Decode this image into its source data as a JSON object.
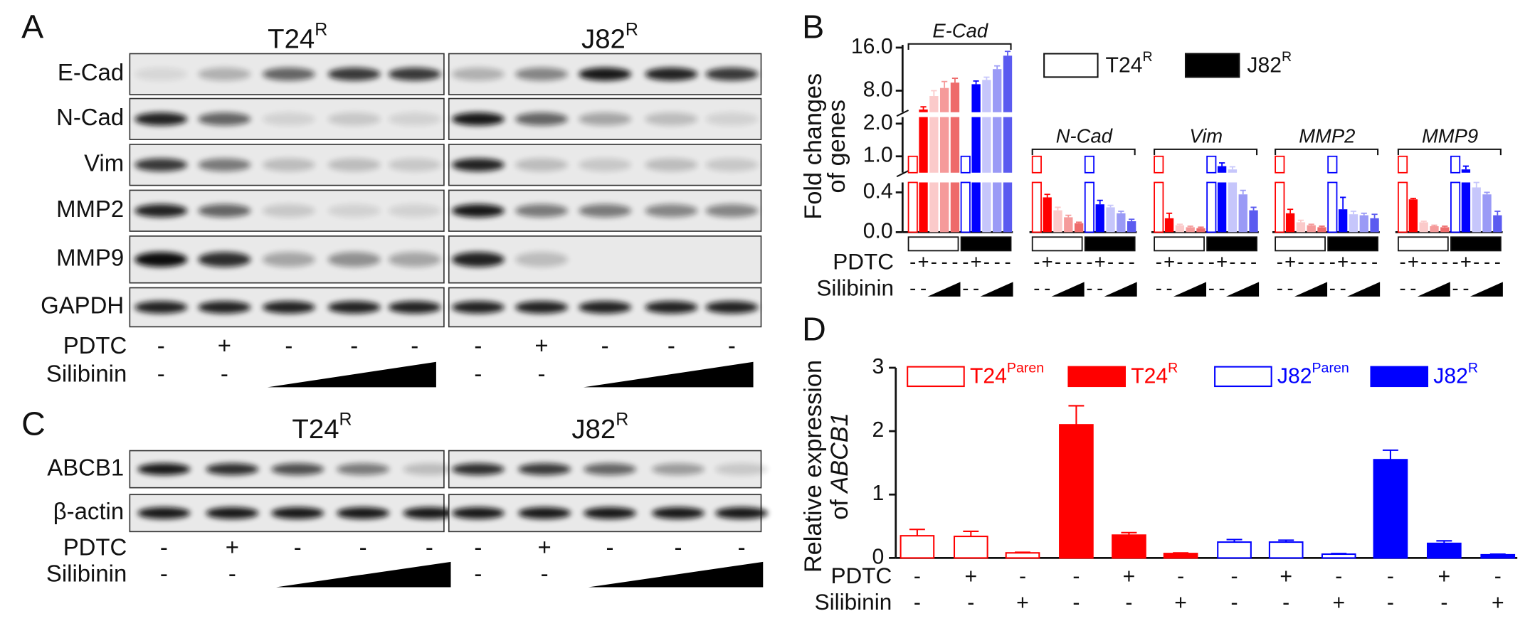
{
  "panels": {
    "A": {
      "label": "A",
      "cell_lines": [
        {
          "name": "T24",
          "sup": "R"
        },
        {
          "name": "J82",
          "sup": "R"
        }
      ],
      "rows": [
        "E-Cad",
        "N-Cad",
        "Vim",
        "MMP2",
        "MMP9",
        "GAPDH"
      ],
      "treatments": [
        {
          "name": "PDTC",
          "signs": [
            "-",
            "+",
            "-",
            "-",
            "-"
          ]
        },
        {
          "name": "Silibinin",
          "signs": [
            "-",
            "-"
          ]
        }
      ]
    },
    "C": {
      "label": "C",
      "cell_lines": [
        {
          "name": "T24",
          "sup": "R"
        },
        {
          "name": "J82",
          "sup": "R"
        }
      ],
      "rows": [
        "ABCB1",
        "β-actin"
      ],
      "treatments": [
        {
          "name": "PDTC",
          "signs": [
            "-",
            "+",
            "-",
            "-",
            "-"
          ]
        },
        {
          "name": "Silibinin",
          "signs": [
            "-",
            "-"
          ]
        }
      ]
    }
  },
  "chart_data": [
    {
      "type": "broken-bar",
      "label": "B",
      "ylabel": [
        "Fold changes",
        "of genes"
      ],
      "ysegments": [
        {
          "ylim": [
            0,
            0.5
          ],
          "yticks": [
            {
              "value": 0,
              "label": "0.0"
            },
            {
              "value": 0.4,
              "label": "0.4"
            }
          ]
        },
        {
          "ylim": [
            0.5,
            2.2
          ],
          "yticks": [
            {
              "value": 1,
              "label": "1.0"
            },
            {
              "value": 2,
              "label": "2.0"
            }
          ]
        },
        {
          "ylim": [
            4,
            16.5
          ],
          "yticks": [
            {
              "value": 8,
              "label": "8.0"
            },
            {
              "value": 16,
              "label": "16.0"
            }
          ]
        }
      ],
      "categories": [
        "E-Cad",
        "N-Cad",
        "Vim",
        "MMP2",
        "MMP9"
      ],
      "series": [
        {
          "name": "T24",
          "sup": "R",
          "legend_fill": "#ffffff",
          "border": "#ff0000",
          "colors": [
            "#ffffff",
            "#ff0000",
            "#fbcaca",
            "#f59a9a",
            "#ee6b6b"
          ],
          "values": [
            [
              1,
              4.5,
              7,
              8.5,
              9.5
            ],
            [
              1,
              0.35,
              0.22,
              0.15,
              0.09
            ],
            [
              1,
              0.14,
              0.07,
              0.05,
              0.04
            ],
            [
              1,
              0.19,
              0.1,
              0.07,
              0.05
            ],
            [
              1,
              0.33,
              0.1,
              0.06,
              0.05
            ]
          ],
          "errors": [
            [
              0,
              0.5,
              1,
              1.2,
              0.8
            ],
            [
              0,
              0.03,
              0.03,
              0.02,
              0.01
            ],
            [
              0,
              0.05,
              0.01,
              0.01,
              0.01
            ],
            [
              0,
              0.04,
              0.02,
              0.01,
              0.01
            ],
            [
              0,
              0.01,
              0.01,
              0.01,
              0.01
            ]
          ]
        },
        {
          "name": "J82",
          "sup": "R",
          "legend_fill": "#000000",
          "border": "#0000ff",
          "colors": [
            "#ffffff",
            "#0000ff",
            "#c6c6fb",
            "#9a9af6",
            "#5b5bf0"
          ],
          "values": [
            [
              1,
              9.2,
              10,
              12,
              14.5
            ],
            [
              1,
              0.28,
              0.25,
              0.19,
              0.11
            ],
            [
              1,
              0.7,
              0.6,
              0.38,
              0.22
            ],
            [
              1,
              0.23,
              0.18,
              0.17,
              0.14
            ],
            [
              1,
              0.6,
              0.45,
              0.38,
              0.17
            ]
          ],
          "errors": [
            [
              0,
              0.6,
              0.5,
              0.6,
              0.8
            ],
            [
              0,
              0.04,
              0.02,
              0.02,
              0.02
            ],
            [
              0,
              0.1,
              0.08,
              0.04,
              0.03
            ],
            [
              0,
              0.12,
              0.03,
              0.02,
              0.04
            ],
            [
              0,
              0.1,
              0.05,
              0.02,
              0.04
            ]
          ]
        }
      ],
      "treatments": [
        {
          "name": "PDTC",
          "signs": [
            "-",
            "+",
            "-",
            "-",
            "-"
          ]
        },
        {
          "name": "Silibinin",
          "signs": [
            "-",
            "-"
          ]
        }
      ]
    },
    {
      "type": "bar",
      "label": "D",
      "ylabel": {
        "line1": "Relative expression",
        "line2": "of",
        "gene": "ABCB1"
      },
      "ylim": [
        0,
        3
      ],
      "yticks": [
        0,
        1,
        2,
        3
      ],
      "series": [
        {
          "name": "T24",
          "sup": "Paren",
          "color": "#ff0000",
          "filled": false,
          "values": [
            0.35,
            0.34,
            0.08
          ],
          "errors": [
            0.1,
            0.08,
            0.01
          ]
        },
        {
          "name": "T24",
          "sup": "R",
          "color": "#ff0000",
          "filled": true,
          "values": [
            2.1,
            0.36,
            0.07
          ],
          "errors": [
            0.3,
            0.04,
            0.01
          ]
        },
        {
          "name": "J82",
          "sup": "Paren",
          "color": "#0000ff",
          "filled": false,
          "values": [
            0.25,
            0.25,
            0.06
          ],
          "errors": [
            0.04,
            0.03,
            0.01
          ]
        },
        {
          "name": "J82",
          "sup": "R",
          "color": "#0000ff",
          "filled": true,
          "values": [
            1.55,
            0.23,
            0.05
          ],
          "errors": [
            0.15,
            0.04,
            0.01
          ]
        }
      ],
      "treatments": [
        {
          "name": "PDTC",
          "signs": [
            "-",
            "+",
            "-",
            "-",
            "+",
            "-",
            "-",
            "+",
            "-",
            "-",
            "+",
            "-"
          ]
        },
        {
          "name": "Silibinin",
          "signs": [
            "-",
            "-",
            "+",
            "-",
            "-",
            "+",
            "-",
            "-",
            "+",
            "-",
            "-",
            "+"
          ]
        }
      ]
    }
  ]
}
